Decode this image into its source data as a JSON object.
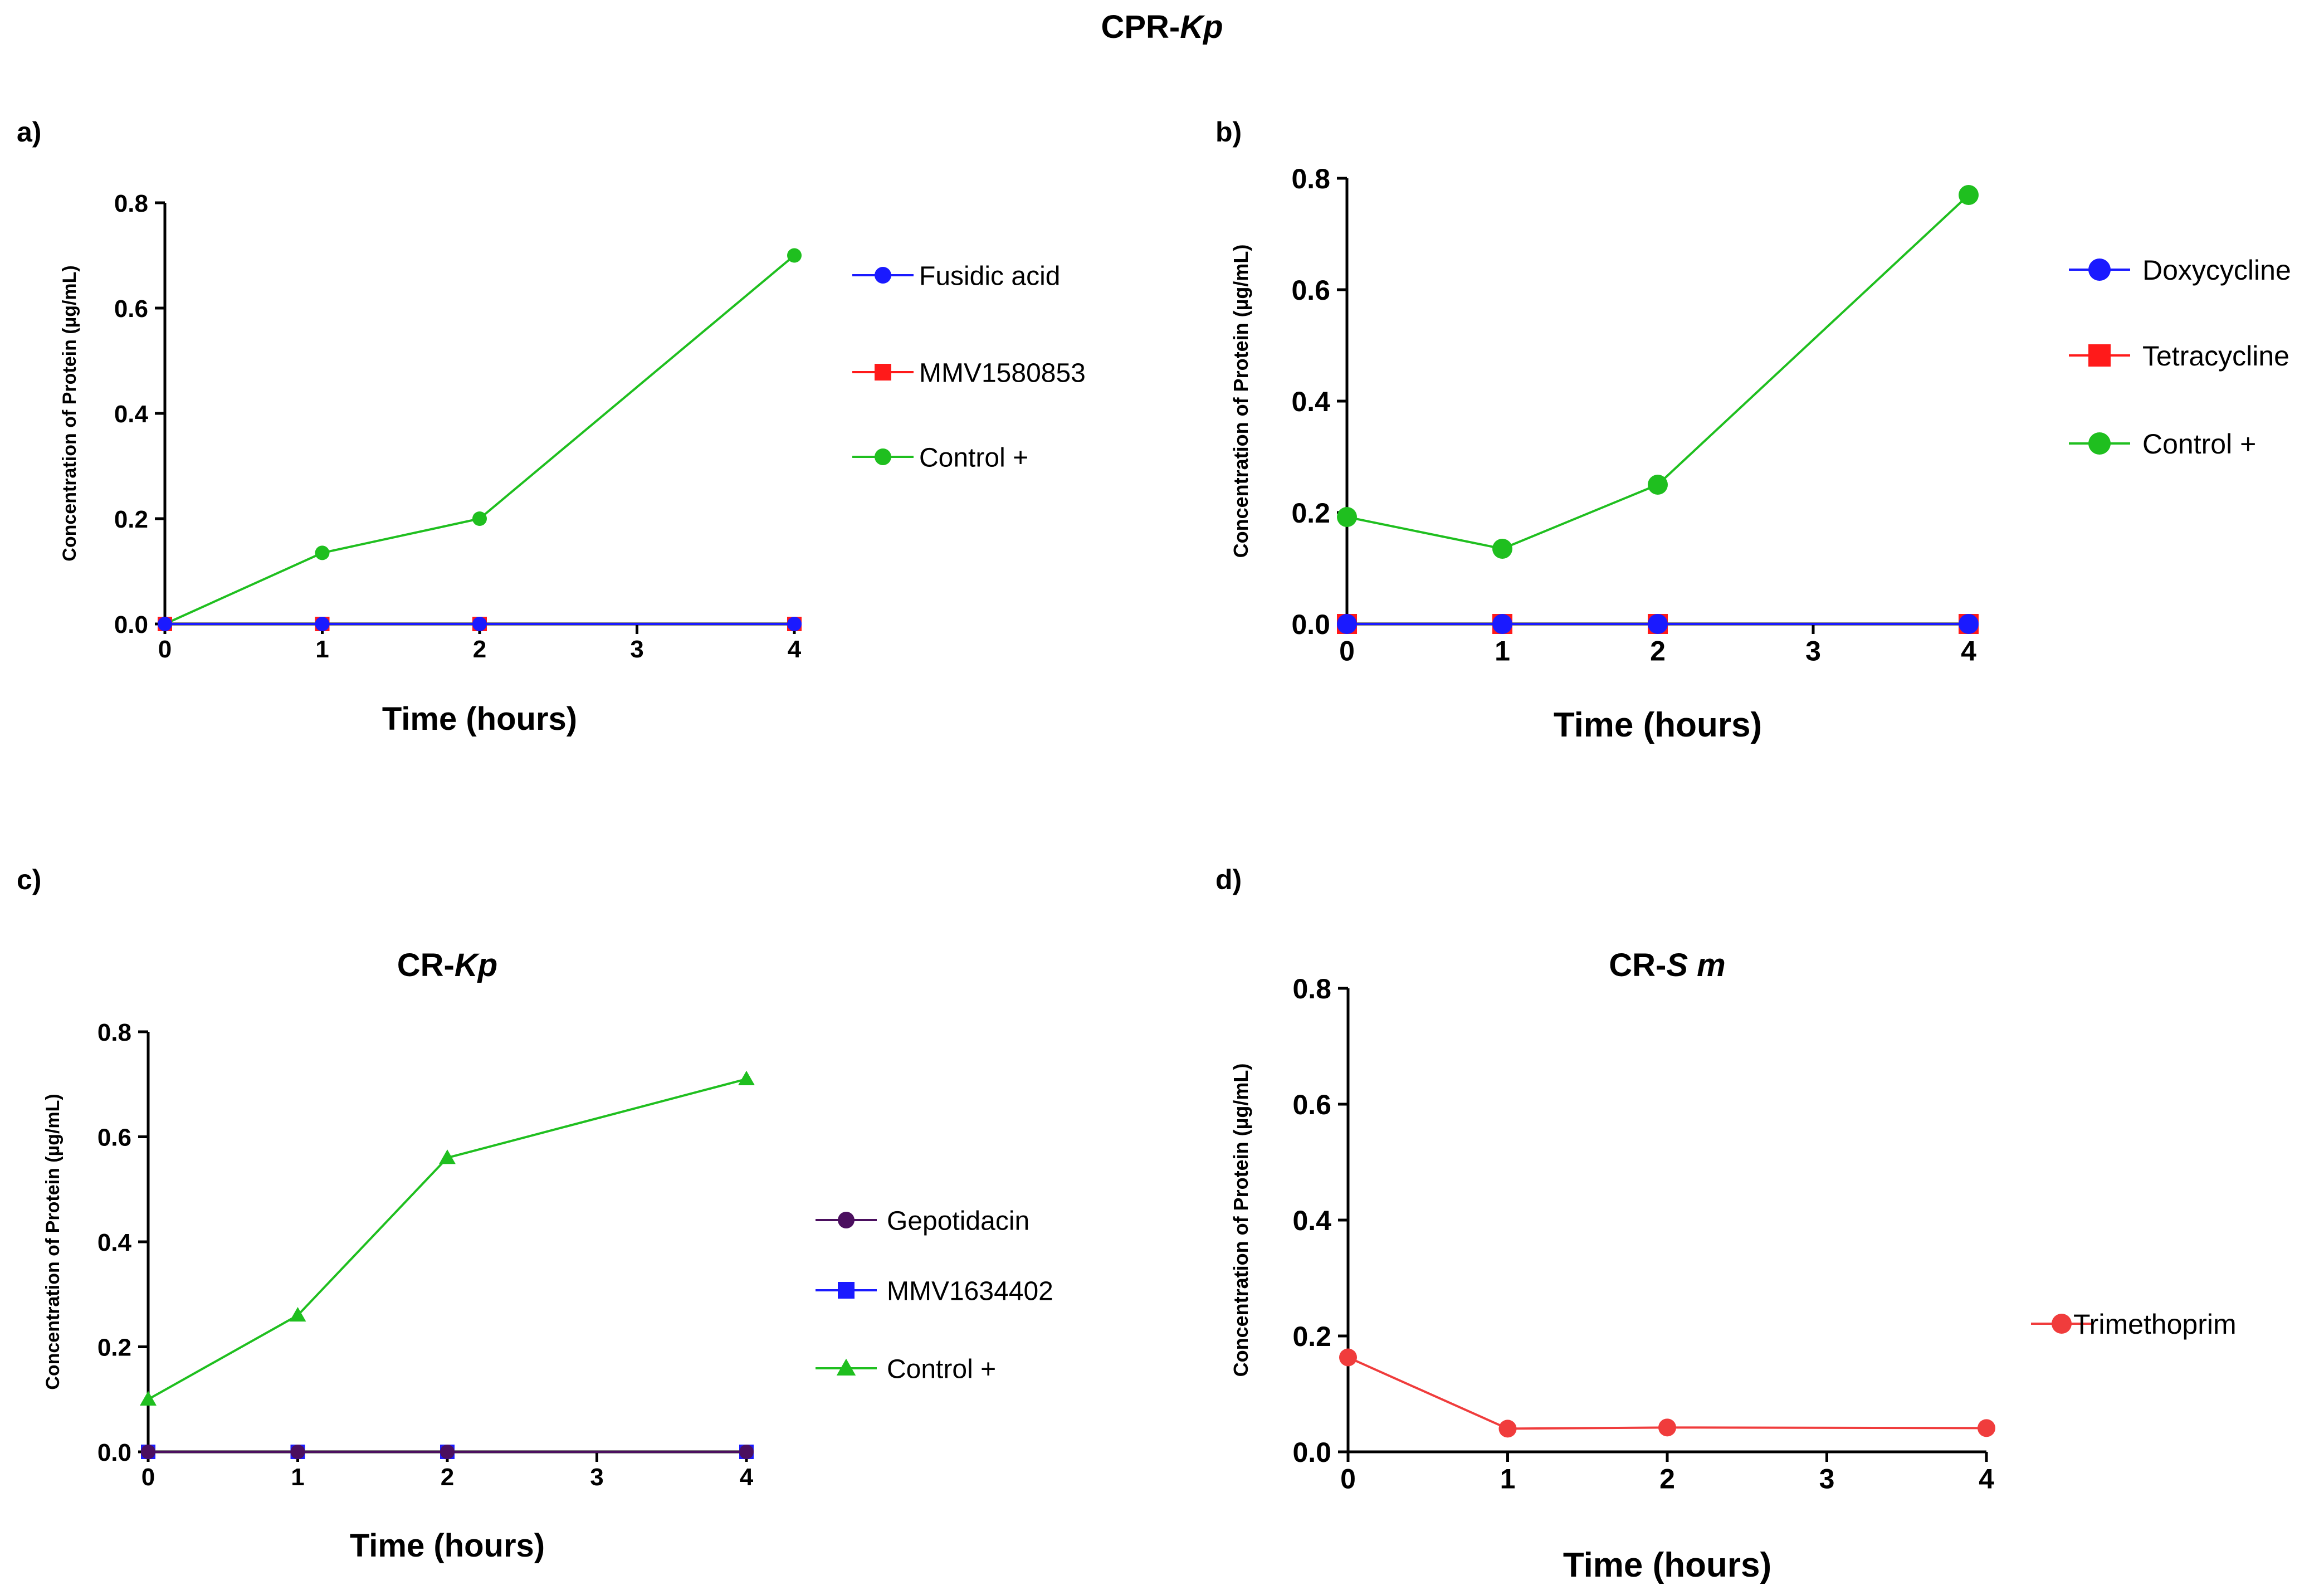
{
  "figure_title": {
    "prefix": "CPR-",
    "italic": "Kp"
  },
  "chart_data": [
    {
      "panel": "a)",
      "type": "line",
      "title": "",
      "xlabel": "Time (hours)",
      "ylabel": "Concentration of Protein (µg/mL)",
      "xlim": [
        0,
        4
      ],
      "ylim": [
        0,
        0.8
      ],
      "xticks": [
        "0",
        "1",
        "2",
        "3",
        "4"
      ],
      "yticks": [
        "0.0",
        "0.2",
        "0.4",
        "0.6",
        "0.8"
      ],
      "series": [
        {
          "name": "Control +",
          "color": "#1fbf1f",
          "marker": "circle",
          "x": [
            0,
            1,
            2,
            4
          ],
          "values": [
            0.0,
            0.135,
            0.2,
            0.7
          ]
        },
        {
          "name": "MMV1580853",
          "color": "#ff1a1a",
          "marker": "square",
          "x": [
            0,
            1,
            2,
            4
          ],
          "values": [
            0.0,
            0.0,
            0.0,
            0.0
          ]
        },
        {
          "name": "Fusidic acid",
          "color": "#1a1aff",
          "marker": "circle",
          "x": [
            0,
            1,
            2,
            4
          ],
          "values": [
            0.0,
            0.0,
            0.0,
            0.0
          ]
        }
      ],
      "legend": [
        "Fusidic acid",
        "MMV1580853",
        "Control +"
      ]
    },
    {
      "panel": "b)",
      "type": "line",
      "title": "",
      "xlabel": "Time (hours)",
      "ylabel": "Concentration of Protein (µg/mL)",
      "xlim": [
        0,
        4
      ],
      "ylim": [
        0,
        0.8
      ],
      "xticks": [
        "0",
        "1",
        "2",
        "3",
        "4"
      ],
      "yticks": [
        "0.0",
        "0.2",
        "0.4",
        "0.6",
        "0.8"
      ],
      "series": [
        {
          "name": "Control +",
          "color": "#1fbf1f",
          "marker": "circle",
          "x": [
            0,
            1,
            2,
            4
          ],
          "values": [
            0.192,
            0.135,
            0.25,
            0.77
          ]
        },
        {
          "name": "Tetracycline",
          "color": "#ff1a1a",
          "marker": "square",
          "x": [
            0,
            1,
            2,
            4
          ],
          "values": [
            0.0,
            0.0,
            0.0,
            0.0
          ]
        },
        {
          "name": "Doxycycline",
          "color": "#1a1aff",
          "marker": "circle",
          "x": [
            0,
            1,
            2,
            4
          ],
          "values": [
            0.0,
            0.0,
            0.0,
            0.0
          ]
        }
      ],
      "legend": [
        "Doxycycline",
        "Tetracycline",
        "Control +"
      ]
    },
    {
      "panel": "c)",
      "type": "line",
      "title": "CR-",
      "title_italic": "Kp",
      "xlabel": "Time (hours)",
      "ylabel": "Concentration of Protein (µg/mL)",
      "xlim": [
        0,
        4
      ],
      "ylim": [
        0,
        0.8
      ],
      "xticks": [
        "0",
        "1",
        "2",
        "3",
        "4"
      ],
      "yticks": [
        "0.0",
        "0.2",
        "0.4",
        "0.6",
        "0.8"
      ],
      "series": [
        {
          "name": "Control +",
          "color": "#1fbf1f",
          "marker": "triangle",
          "x": [
            0,
            1,
            2,
            4
          ],
          "values": [
            0.1,
            0.26,
            0.56,
            0.71
          ]
        },
        {
          "name": "MMV1634402",
          "color": "#1a1aff",
          "marker": "square",
          "x": [
            0,
            1,
            2,
            4
          ],
          "values": [
            0.0,
            0.0,
            0.0,
            0.0
          ]
        },
        {
          "name": "Gepotidacin",
          "color": "#4b0f5f",
          "marker": "circle",
          "x": [
            0,
            1,
            2,
            4
          ],
          "values": [
            0.0,
            0.0,
            0.0,
            0.0
          ]
        }
      ],
      "legend": [
        "Gepotidacin",
        "MMV1634402",
        "Control +"
      ]
    },
    {
      "panel": "d)",
      "type": "line",
      "title": "CR-",
      "title_italic": "S m",
      "xlabel": "Time (hours)",
      "ylabel": "Concentration of Protein (µg/mL)",
      "xlim": [
        0,
        4
      ],
      "ylim": [
        0,
        0.8
      ],
      "xticks": [
        "0",
        "1",
        "2",
        "3",
        "4"
      ],
      "yticks": [
        "0.0",
        "0.2",
        "0.4",
        "0.6",
        "0.8"
      ],
      "series": [
        {
          "name": "Trimethoprim",
          "color": "#f03c3c",
          "marker": "circle",
          "x": [
            0,
            1,
            2,
            4
          ],
          "values": [
            0.163,
            0.04,
            0.042,
            0.041
          ]
        }
      ],
      "legend": [
        "Trimethoprim"
      ]
    }
  ]
}
